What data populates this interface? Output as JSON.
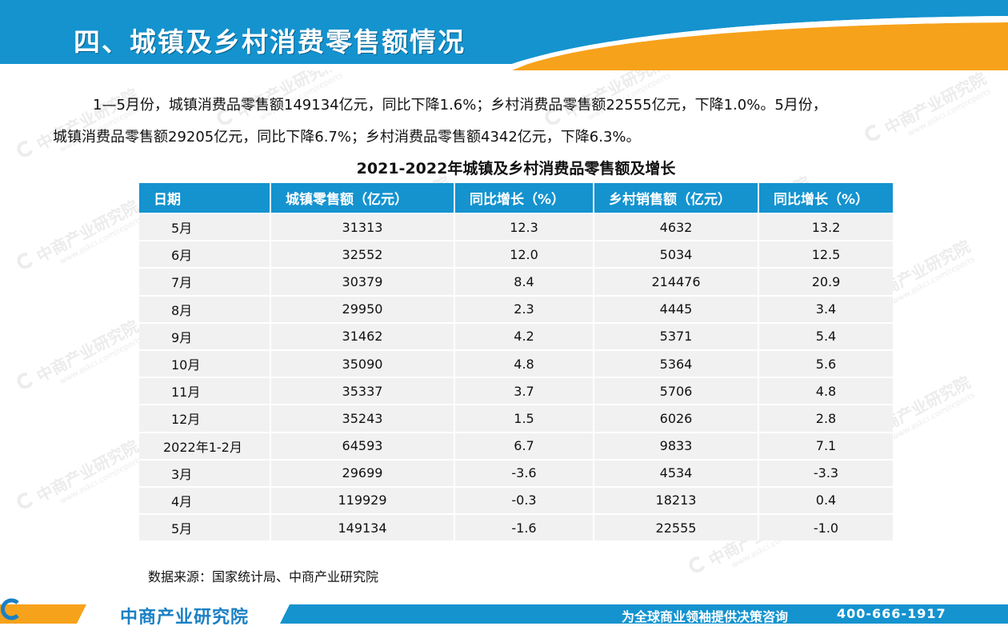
{
  "header": {
    "title": "四、城镇及乡村消费零售额情况",
    "colors": {
      "blue": "#1493cf",
      "orange": "#f7a21b"
    }
  },
  "intro": {
    "line1": "1—5月份，城镇消费品零售额149134亿元，同比下降1.6%；乡村消费品零售额22555亿元，下降1.0%。5月份，",
    "line2": "城镇消费品零售额29205亿元，同比下降6.7%；乡村消费品零售额4342亿元，下降6.3%。"
  },
  "table": {
    "title": "2021-2022年城镇及乡村消费品零售额及增长",
    "headers": [
      "日期",
      "城镇零售额（亿元）",
      "同比增长（%）",
      "乡村销售额（亿元）",
      "同比增长（%）"
    ],
    "rows": [
      [
        "5月",
        "31313",
        "12.3",
        "4632",
        "13.2"
      ],
      [
        "6月",
        "32552",
        "12.0",
        "5034",
        "12.5"
      ],
      [
        "7月",
        "30379",
        "8.4",
        "214476",
        "20.9"
      ],
      [
        "8月",
        "29950",
        "2.3",
        "4445",
        "3.4"
      ],
      [
        "9月",
        "31462",
        "4.2",
        "5371",
        "5.4"
      ],
      [
        "10月",
        "35090",
        "4.8",
        "5364",
        "5.6"
      ],
      [
        "11月",
        "35337",
        "3.7",
        "5706",
        "4.8"
      ],
      [
        "12月",
        "35243",
        "1.5",
        "6026",
        "2.8"
      ],
      [
        "2022年1-2月",
        "64593",
        "6.7",
        "9833",
        "7.1"
      ],
      [
        "3月",
        "29699",
        "-3.6",
        "4534",
        "-3.3"
      ],
      [
        "4月",
        "119929",
        "-0.3",
        "18213",
        "0.4"
      ],
      [
        "5月",
        "149134",
        "-1.6",
        "22555",
        "-1.0"
      ]
    ],
    "source": "数据来源：国家统计局、中商产业研究院"
  },
  "watermark": {
    "text": "中商产业研究院",
    "url": "www.askci.com/reports"
  },
  "footer": {
    "brand": "中商产业研究院",
    "slogan": "为全球商业领袖提供决策咨询",
    "phone": "400-666-1917"
  }
}
